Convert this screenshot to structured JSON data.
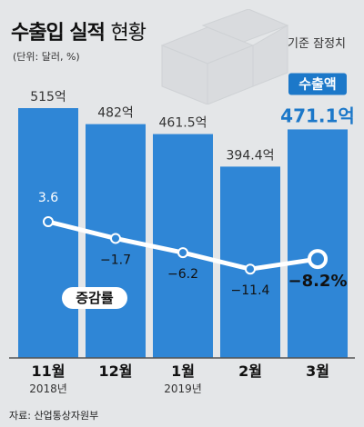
{
  "header": {
    "title_bold": "수출입 실적",
    "title_light": "현황",
    "unit": "(단위: 달러, %)",
    "basis": "통관기준 잠정치"
  },
  "source": "자료: 산업통상자원부",
  "colors": {
    "bar": "#2f86d6",
    "highlight_badge": "#1c78c9",
    "line": "#ffffff",
    "background": "#e4e6e8"
  },
  "chart_data": {
    "type": "bar",
    "categories": [
      "11월",
      "12월",
      "1월",
      "2월",
      "3월"
    ],
    "sublabels": [
      "2018년",
      "",
      "2019년",
      "",
      ""
    ],
    "series": [
      {
        "values": [
          515,
          482,
          461.5,
          394.4,
          471.1
        ],
        "labels": [
          "515억",
          "482억",
          "461.5억",
          "394.4억",
          "471.1억"
        ]
      },
      {
        "name": "증감률",
        "values": [
          3.6,
          -1.7,
          -6.2,
          -11.4,
          -8.2
        ],
        "labels": [
          "3.6",
          "−1.7",
          "−6.2",
          "−11.4",
          "−8.2%"
        ]
      }
    ],
    "highlight_badge": "수출액"
  }
}
